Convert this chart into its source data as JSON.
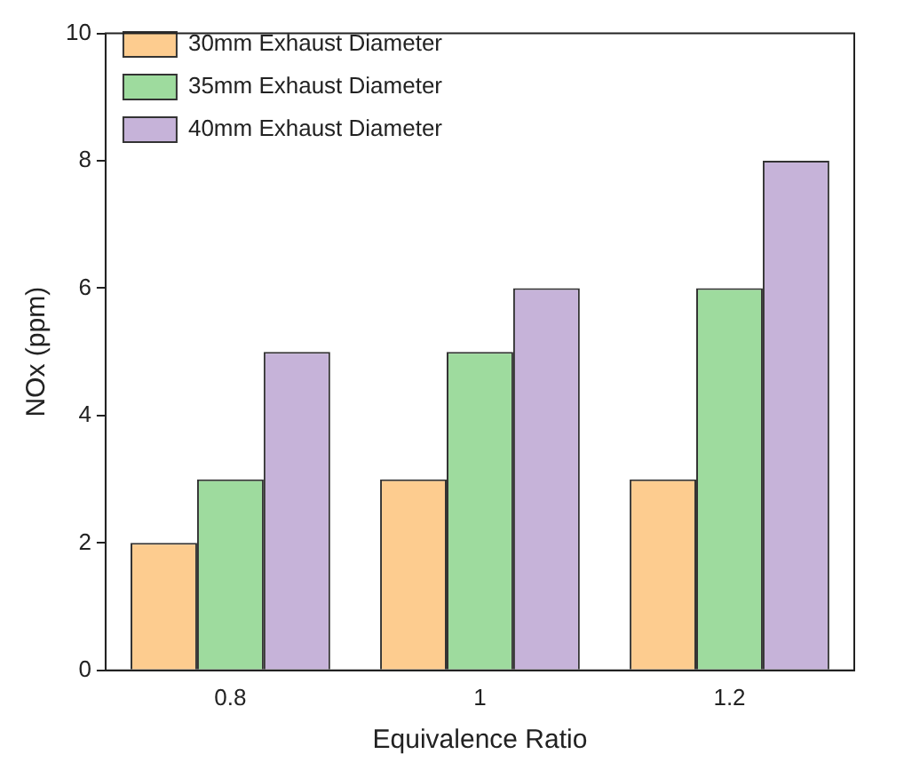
{
  "chart_data": {
    "type": "bar",
    "xlabel": "Equivalence Ratio",
    "ylabel": "NOx (ppm)",
    "categories": [
      "0.8",
      "1",
      "1.2"
    ],
    "series": [
      {
        "name": "30mm Exhaust Diameter",
        "color": "#fdcc8f",
        "values": [
          2,
          3,
          3
        ]
      },
      {
        "name": "35mm Exhaust Diameter",
        "color": "#9edb9e",
        "values": [
          3,
          5,
          6
        ]
      },
      {
        "name": "40mm Exhaust Diameter",
        "color": "#c6b3d9",
        "values": [
          5,
          6,
          8
        ]
      }
    ],
    "ylim": [
      0,
      10
    ],
    "yticks": [
      0,
      2,
      4,
      6,
      8,
      10
    ],
    "grid": false,
    "legend": "top left"
  }
}
